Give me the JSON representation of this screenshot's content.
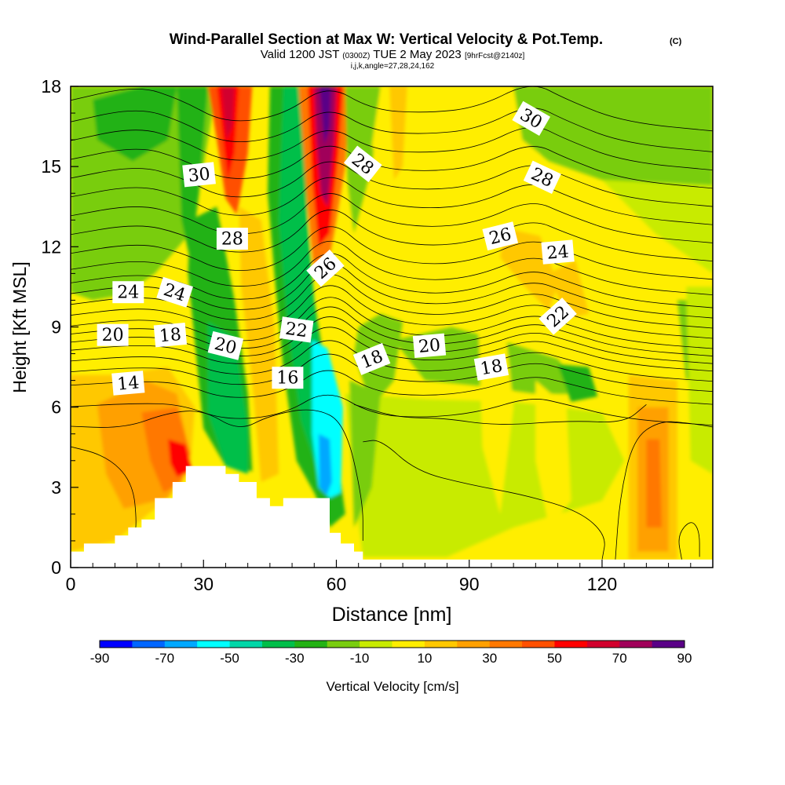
{
  "title": {
    "main": "Wind-Parallel Section at Max W: Vertical Velocity & Pot.Temp.",
    "copyright": "(C)",
    "line2_valid": "Valid 1200 JST",
    "line2_zulu": "(0300Z)",
    "line2_date": "TUE 2 May 2023",
    "line2_fcst": "[9hrFcst@2140z]",
    "line3": "i,j,k,angle=27,28,24,162"
  },
  "chart_data": {
    "type": "heatmap",
    "xlabel": "Distance [nm]",
    "ylabel": "Height [Kft MSL]",
    "xlim": [
      0,
      145
    ],
    "ylim": [
      0,
      18
    ],
    "x_ticks": [
      0,
      30,
      60,
      90,
      120
    ],
    "y_ticks": [
      0,
      3,
      6,
      9,
      12,
      15,
      18
    ],
    "colorbar": {
      "label": "Vertical Velocity [cm/s]",
      "levels": [
        -90,
        -80,
        -70,
        -60,
        -50,
        -40,
        -30,
        -20,
        -10,
        0,
        10,
        20,
        30,
        40,
        50,
        60,
        70,
        80,
        90
      ],
      "tick_labels": [
        "-90",
        "-70",
        "-50",
        "-30",
        "-10",
        "10",
        "30",
        "50",
        "70",
        "90"
      ],
      "colors": [
        "#0000ff",
        "#0066ff",
        "#00a8ff",
        "#00ffff",
        "#00d7a8",
        "#00bf4a",
        "#23b214",
        "#79cd0f",
        "#c8eb00",
        "#ffee00",
        "#ffc800",
        "#ffa000",
        "#ff7800",
        "#ff5000",
        "#ff0000",
        "#d2002d",
        "#a0005a",
        "#5a0087"
      ]
    },
    "terrain_profile": [
      [
        0,
        0.6
      ],
      [
        3,
        0.6
      ],
      [
        3,
        0.9
      ],
      [
        10,
        0.9
      ],
      [
        10,
        1.2
      ],
      [
        13,
        1.2
      ],
      [
        13,
        1.5
      ],
      [
        16,
        1.5
      ],
      [
        16,
        1.8
      ],
      [
        19,
        1.8
      ],
      [
        19,
        2.6
      ],
      [
        23,
        2.6
      ],
      [
        23,
        3.2
      ],
      [
        26,
        3.2
      ],
      [
        26,
        3.8
      ],
      [
        35,
        3.8
      ],
      [
        35,
        3.5
      ],
      [
        38,
        3.5
      ],
      [
        38,
        3.2
      ],
      [
        42,
        3.2
      ],
      [
        42,
        2.6
      ],
      [
        45,
        2.6
      ],
      [
        45,
        2.3
      ],
      [
        48,
        2.3
      ],
      [
        48,
        2.6
      ],
      [
        58.5,
        2.6
      ],
      [
        58.5,
        1.3
      ],
      [
        61,
        1.3
      ],
      [
        61,
        0.9
      ],
      [
        64,
        0.9
      ],
      [
        64,
        0.6
      ],
      [
        66,
        0.6
      ],
      [
        66,
        0.3
      ],
      [
        145,
        0.3
      ]
    ],
    "vertical_velocity_features": [
      {
        "x_range": [
          31,
          37
        ],
        "y_range": [
          14,
          18
        ],
        "value": 60
      },
      {
        "x_range": [
          55,
          61
        ],
        "y_range": [
          11,
          18
        ],
        "value": 80
      },
      {
        "x_range": [
          27,
          34
        ],
        "y_range": [
          3.8,
          13
        ],
        "value": -30
      },
      {
        "x_range": [
          54,
          61
        ],
        "y_range": [
          2.6,
          9
        ],
        "value": -50
      },
      {
        "x_range": [
          55.5,
          58.5
        ],
        "y_range": [
          2.6,
          4.5
        ],
        "value": -70
      },
      {
        "x_range": [
          15,
          28
        ],
        "y_range": [
          2.6,
          7
        ],
        "value": 30
      },
      {
        "x_range": [
          127,
          135
        ],
        "y_range": [
          0.3,
          6.5
        ],
        "value": 30
      }
    ],
    "theta_contour_labels": [
      {
        "text": "30",
        "x": 29,
        "y": 14.7
      },
      {
        "text": "28",
        "x": 36.5,
        "y": 12.3
      },
      {
        "text": "24",
        "x": 13,
        "y": 10.3
      },
      {
        "text": "24",
        "x": 23.5,
        "y": 10.3
      },
      {
        "text": "20",
        "x": 9.5,
        "y": 8.7
      },
      {
        "text": "18",
        "x": 22.5,
        "y": 8.7
      },
      {
        "text": "20",
        "x": 35,
        "y": 8.3
      },
      {
        "text": "14",
        "x": 13,
        "y": 6.9
      },
      {
        "text": "16",
        "x": 49,
        "y": 7.1
      },
      {
        "text": "22",
        "x": 51,
        "y": 8.9
      },
      {
        "text": "26",
        "x": 57.5,
        "y": 11.2
      },
      {
        "text": "28",
        "x": 66,
        "y": 15.1
      },
      {
        "text": "18",
        "x": 68,
        "y": 7.8
      },
      {
        "text": "20",
        "x": 81,
        "y": 8.3
      },
      {
        "text": "18",
        "x": 95,
        "y": 7.5
      },
      {
        "text": "26",
        "x": 97,
        "y": 12.4
      },
      {
        "text": "24",
        "x": 110,
        "y": 11.8
      },
      {
        "text": "22",
        "x": 110,
        "y": 9.4
      },
      {
        "text": "28",
        "x": 106.5,
        "y": 14.6
      },
      {
        "text": "30",
        "x": 104,
        "y": 16.8
      }
    ]
  }
}
